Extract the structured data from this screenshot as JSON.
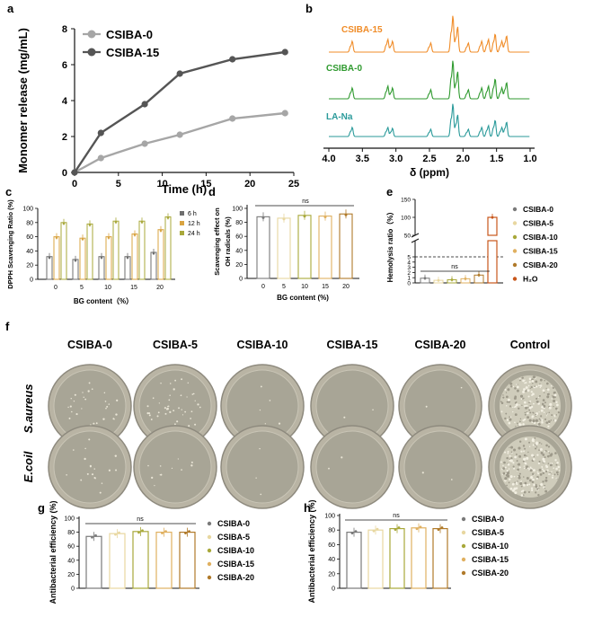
{
  "panels": {
    "a": {
      "letter": "a"
    },
    "b": {
      "letter": "b"
    },
    "c": {
      "letter": "c"
    },
    "d": {
      "letter": "d"
    },
    "e": {
      "letter": "e"
    },
    "f": {
      "letter": "f"
    },
    "g": {
      "letter": "g"
    },
    "h": {
      "letter": "h"
    }
  },
  "colors": {
    "csiba0_light": "#a6a6a6",
    "csiba15_dark": "#555555",
    "nmr_orange": "#f08c28",
    "nmr_green": "#2f9a2f",
    "nmr_teal": "#2a9a9a",
    "bg_0": "#7a7a7a",
    "bg_5": "#e8d7a0",
    "bg_10": "#a8a83a",
    "bg_15": "#e0b060",
    "bg_20": "#b07a2a",
    "h2o": "#c8561a"
  },
  "chart_data": [
    {
      "id": "a",
      "type": "line",
      "xlabel": "Time (h)",
      "ylabel": "Monomer release (mg/mL)",
      "xlim": [
        0,
        25
      ],
      "ylim": [
        0,
        8
      ],
      "xticks": [
        "0",
        "5",
        "10",
        "15",
        "20",
        "25"
      ],
      "yticks": [
        "0",
        "2",
        "4",
        "6",
        "8"
      ],
      "legend_position": "top-left",
      "series": [
        {
          "name": "CSIBA-0",
          "x": [
            0,
            3,
            8,
            12,
            18,
            24
          ],
          "values": [
            0,
            0.8,
            1.6,
            2.1,
            3.0,
            3.3
          ]
        },
        {
          "name": "CSIBA-15",
          "x": [
            0,
            3,
            8,
            12,
            18,
            24
          ],
          "values": [
            0,
            2.2,
            3.8,
            5.5,
            6.3,
            6.7
          ]
        }
      ]
    },
    {
      "id": "b",
      "type": "line",
      "xlabel": "δ (ppm)",
      "xlim": [
        4.0,
        1.0
      ],
      "xticks": [
        "4.0",
        "3.5",
        "3.0",
        "2.5",
        "2.0",
        "1.5",
        "1.0"
      ],
      "series": [
        {
          "name": "CSIBA-15"
        },
        {
          "name": "CSIBA-0"
        },
        {
          "name": "LA-Na"
        }
      ],
      "peaks_ppm": [
        3.65,
        3.12,
        3.05,
        2.48,
        2.15,
        2.08,
        1.92,
        1.72,
        1.62,
        1.52,
        1.42,
        1.35
      ]
    },
    {
      "id": "c",
      "type": "bar",
      "xlabel": "BG content（%）",
      "ylabel": "DPPH Scavenging Ratio (%)",
      "ylim": [
        0,
        100
      ],
      "yticks": [
        "0",
        "20",
        "40",
        "60",
        "80",
        "100"
      ],
      "categories": [
        "0",
        "5",
        "10",
        "15",
        "20"
      ],
      "legend_position": "right",
      "series": [
        {
          "name": "6 h",
          "values": [
            32,
            28,
            32,
            32,
            38
          ]
        },
        {
          "name": "12 h",
          "values": [
            60,
            58,
            60,
            64,
            70
          ]
        },
        {
          "name": "24 h",
          "values": [
            80,
            78,
            82,
            82,
            88
          ]
        }
      ]
    },
    {
      "id": "d",
      "type": "bar",
      "xlabel": "BG content (%)",
      "ylabel": "Scavenging effect on OH radicals (%)",
      "ylim": [
        0,
        100
      ],
      "yticks": [
        "0",
        "20",
        "40",
        "60",
        "80",
        "100"
      ],
      "categories": [
        "0",
        "5",
        "10",
        "15",
        "20"
      ],
      "values": [
        88,
        86,
        90,
        89,
        92
      ],
      "annotation": "ns"
    },
    {
      "id": "e",
      "type": "bar",
      "ylabel": "Hemolysis ratio（%）",
      "yticks": [
        "0",
        "1",
        "2",
        "3",
        "4",
        "5",
        "50",
        "100",
        "150"
      ],
      "categories": [
        "CSIBA-0",
        "CSIBA-5",
        "CSIBA-10",
        "CSIBA-15",
        "CSIBA-20",
        "H₂O"
      ],
      "values": [
        0.9,
        0.5,
        0.6,
        0.8,
        1.5,
        100
      ],
      "threshold": 5,
      "annotation": "ns",
      "legend": [
        "CSIBA-0",
        "CSIBA-5",
        "CSIBA-10",
        "CSIBA-15",
        "CSIBA-20",
        "H₂O"
      ]
    },
    {
      "id": "g",
      "type": "bar",
      "ylabel": "Antibacterial efficiency (%)",
      "ylim": [
        0,
        100
      ],
      "yticks": [
        "0",
        "20",
        "40",
        "60",
        "80",
        "100"
      ],
      "categories": [
        "CSIBA-0",
        "CSIBA-5",
        "CSIBA-10",
        "CSIBA-15",
        "CSIBA-20"
      ],
      "values": [
        74,
        78,
        81,
        80,
        80
      ],
      "annotation": "ns",
      "legend": [
        "CSIBA-0",
        "CSIBA-5",
        "CSIBA-10",
        "CSIBA-15",
        "CSIBA-20"
      ]
    },
    {
      "id": "h",
      "type": "bar",
      "ylabel": "Antibacterial efficiency (%)",
      "ylim": [
        0,
        100
      ],
      "yticks": [
        "0",
        "20",
        "40",
        "60",
        "80",
        "100"
      ],
      "categories": [
        "CSIBA-0",
        "CSIBA-5",
        "CSIBA-10",
        "CSIBA-15",
        "CSIBA-20"
      ],
      "values": [
        77,
        80,
        82,
        83,
        82
      ],
      "annotation": "ns",
      "legend": [
        "CSIBA-0",
        "CSIBA-5",
        "CSIBA-10",
        "CSIBA-15",
        "CSIBA-20"
      ]
    }
  ],
  "plates": {
    "columns": [
      "CSIBA-0",
      "CSIBA-5",
      "CSIBA-10",
      "CSIBA-15",
      "CSIBA-20",
      "Control"
    ],
    "rows": [
      "S.aureus",
      "E.coil"
    ],
    "colony_levels": [
      [
        0.35,
        0.5,
        0.05,
        0.02,
        0.02,
        1.0
      ],
      [
        0.2,
        0.12,
        0.03,
        0.02,
        0.02,
        1.0
      ]
    ]
  }
}
